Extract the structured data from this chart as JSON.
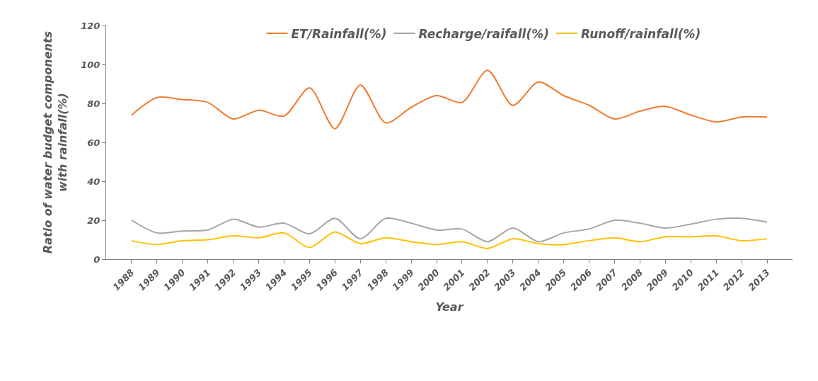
{
  "chart_data": {
    "type": "line",
    "xlabel": "Year",
    "ylabel": "Ratio of water budget components with rainfall(%)",
    "categories": [
      "1988",
      "1989",
      "1990",
      "1991",
      "1992",
      "1993",
      "1994",
      "1995",
      "1996",
      "1997",
      "1998",
      "1999",
      "2000",
      "2001",
      "2002",
      "2003",
      "2004",
      "2005",
      "2006",
      "2007",
      "2008",
      "2009",
      "2010",
      "2011",
      "2012",
      "2013"
    ],
    "series": [
      {
        "name": "ET/Rainfall(%)",
        "color": "#ed7d31",
        "values": [
          74,
          83,
          82,
          80.5,
          72,
          76.5,
          73.5,
          88,
          67,
          89.5,
          70,
          78,
          84,
          80.5,
          97,
          79,
          91,
          84,
          79,
          72,
          76,
          78.5,
          74,
          70.5,
          73,
          73
        ]
      },
      {
        "name": "Recharge/raifall(%)",
        "color": "#a5a5a5",
        "values": [
          20,
          13.5,
          14.5,
          15,
          20.5,
          16.5,
          18.5,
          13,
          21,
          10.5,
          21,
          18.5,
          15,
          15.5,
          9,
          16,
          9,
          13.5,
          15.5,
          20,
          18.5,
          16,
          18,
          20.5,
          21,
          19
        ]
      },
      {
        "name": "Runoff/rainfall(%)",
        "color": "#ffc000",
        "values": [
          9.5,
          7.5,
          9.5,
          10,
          12,
          11,
          13.5,
          6,
          14,
          8,
          11,
          9,
          7.5,
          9,
          5.5,
          10.5,
          8,
          7.5,
          9.5,
          11,
          9,
          11.5,
          11.5,
          12,
          9.5,
          10.5
        ]
      }
    ],
    "ylim": [
      0,
      120
    ],
    "yticks": [
      0,
      20,
      40,
      60,
      80,
      100,
      120
    ],
    "legend": "top",
    "marker": "none",
    "line_style": "solid"
  }
}
